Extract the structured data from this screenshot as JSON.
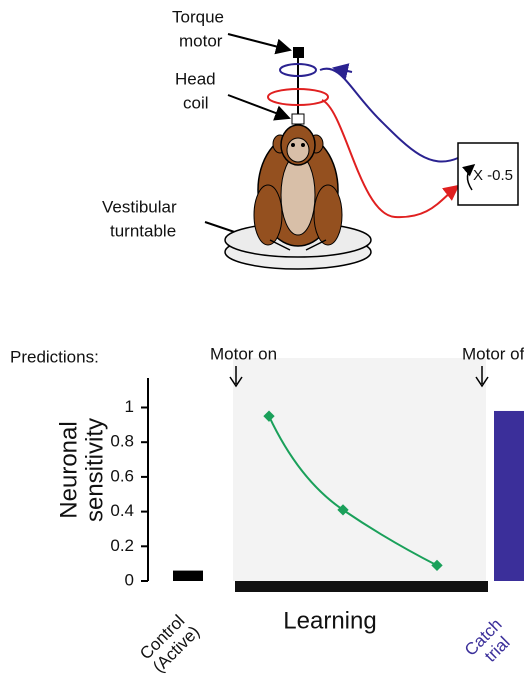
{
  "diagram": {
    "torque_motor": [
      "Torque",
      "motor"
    ],
    "head_coil": [
      "Head",
      "coil"
    ],
    "turntable": [
      "Vestibular",
      "turntable"
    ],
    "gain": "X -0.5"
  },
  "chart_data": {
    "type": "bar-line",
    "title": "Predictions:",
    "ylabel": [
      "Neuronal",
      "sensitivity"
    ],
    "ylim": [
      0,
      1.17
    ],
    "yticks": [
      0,
      0.2,
      0.4,
      0.6,
      0.8,
      1
    ],
    "annotations": [
      "Motor on",
      "Motor off"
    ],
    "bars": [
      {
        "label": [
          "Control",
          "(Active)"
        ],
        "value": 0.06,
        "color": "#000000"
      },
      {
        "label": [
          "Catch",
          "trial"
        ],
        "value": 0.98,
        "color": "#3b2f9a"
      }
    ],
    "learning": {
      "label": "Learning",
      "values": [
        0.95,
        0.41,
        0.09
      ],
      "color": "#1aa05a"
    }
  }
}
